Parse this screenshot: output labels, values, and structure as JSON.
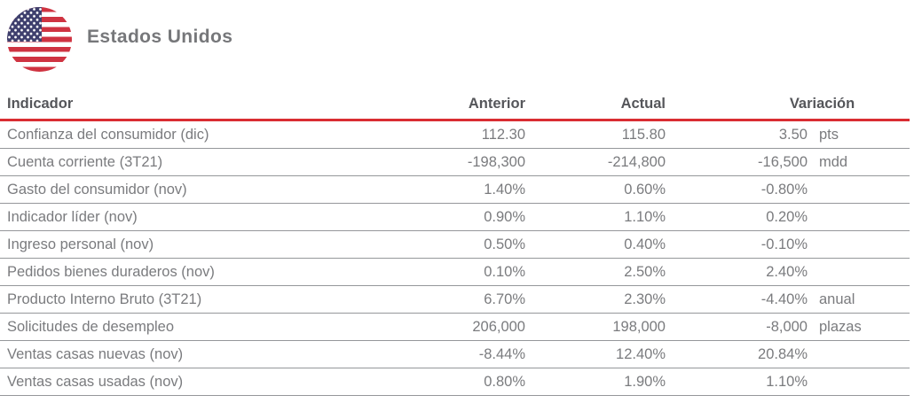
{
  "header": {
    "title": "Estados Unidos",
    "flag_icon": "us-flag-circle"
  },
  "colors": {
    "accent_red": "#d92d32",
    "header_text": "#55565a",
    "body_text": "#7a7b7e",
    "separator": "#95979a",
    "title_text": "#76777a",
    "flag_red": "#cf3341",
    "flag_blue": "#3e3f6d"
  },
  "table": {
    "columns": [
      "Indicador",
      "Anterior",
      "Actual",
      "Variación"
    ],
    "rows": [
      {
        "indicador": "Confianza del consumidor (dic)",
        "anterior": "112.30",
        "actual": "115.80",
        "variacion": "3.50",
        "unidad": "pts"
      },
      {
        "indicador": "Cuenta corriente (3T21)",
        "anterior": "-198,300",
        "actual": "-214,800",
        "variacion": "-16,500",
        "unidad": "mdd"
      },
      {
        "indicador": "Gasto del consumidor (nov)",
        "anterior": "1.40%",
        "actual": "0.60%",
        "variacion": "-0.80%",
        "unidad": ""
      },
      {
        "indicador": "Indicador líder (nov)",
        "anterior": "0.90%",
        "actual": "1.10%",
        "variacion": "0.20%",
        "unidad": ""
      },
      {
        "indicador": "Ingreso personal (nov)",
        "anterior": "0.50%",
        "actual": "0.40%",
        "variacion": "-0.10%",
        "unidad": ""
      },
      {
        "indicador": "Pedidos bienes duraderos (nov)",
        "anterior": "0.10%",
        "actual": "2.50%",
        "variacion": "2.40%",
        "unidad": ""
      },
      {
        "indicador": "Producto Interno Bruto (3T21)",
        "anterior": "6.70%",
        "actual": "2.30%",
        "variacion": "-4.40%",
        "unidad": "anual"
      },
      {
        "indicador": "Solicitudes de desempleo",
        "anterior": "206,000",
        "actual": "198,000",
        "variacion": "-8,000",
        "unidad": "plazas"
      },
      {
        "indicador": "Ventas casas nuevas (nov)",
        "anterior": "-8.44%",
        "actual": "12.40%",
        "variacion": "20.84%",
        "unidad": ""
      },
      {
        "indicador": "Ventas casas usadas (nov)",
        "anterior": "0.80%",
        "actual": "1.90%",
        "variacion": "1.10%",
        "unidad": ""
      }
    ]
  }
}
